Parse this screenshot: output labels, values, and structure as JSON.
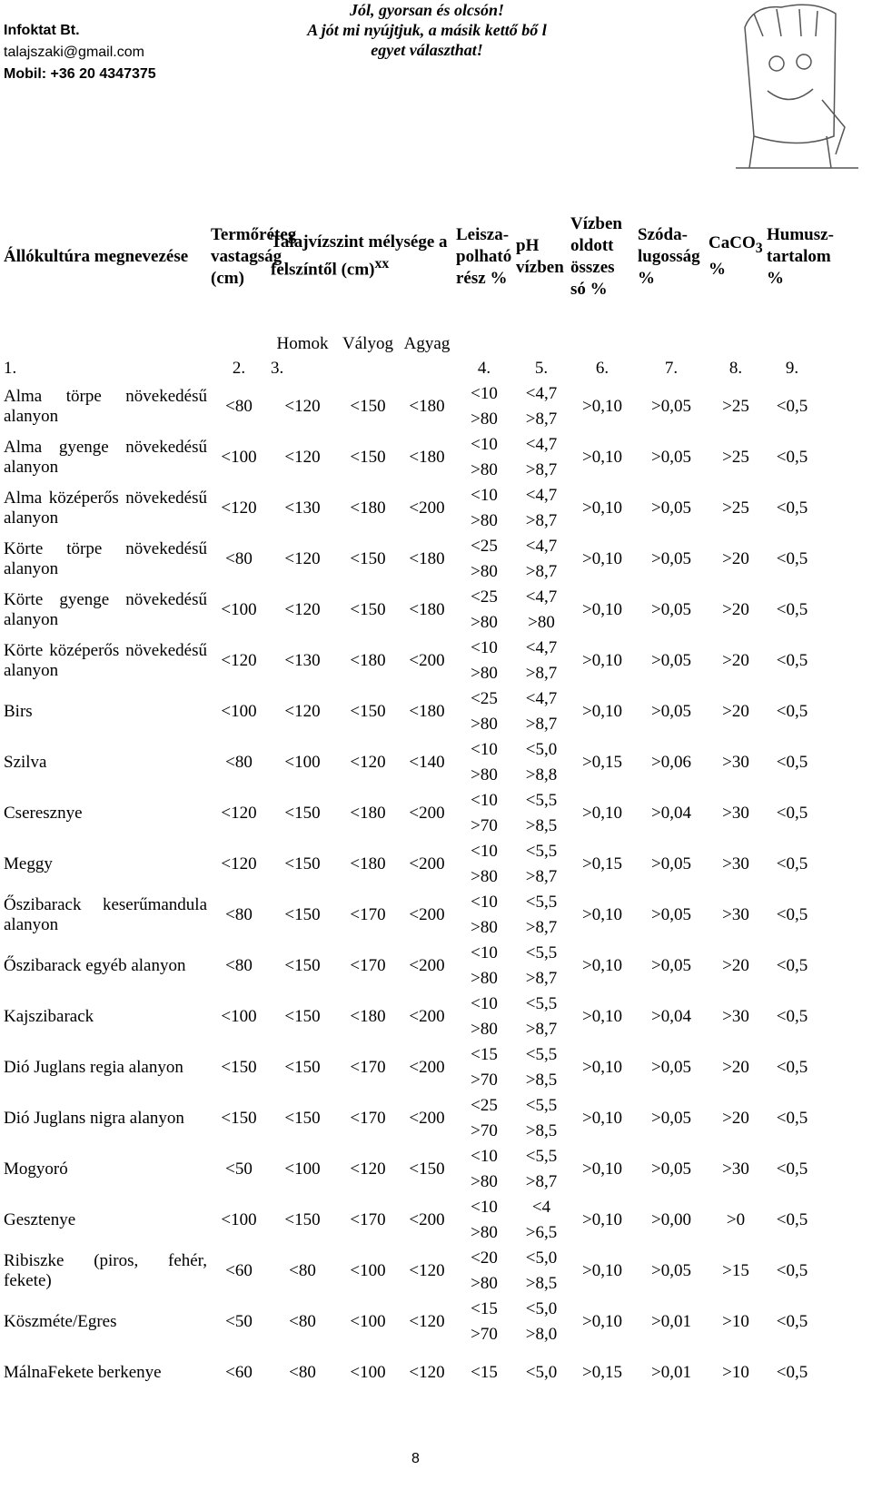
{
  "header": {
    "company": [
      "Infoktat Bt.",
      "talajszaki@gmail.com",
      "Mobil: +36 20 4347375"
    ],
    "slogan": [
      "Jól, gyorsan és olcsón!",
      "A jót mi nyújtjuk, a másik kettő bő l",
      "egyet választhat!"
    ]
  },
  "table": {
    "headers": [
      "Állókultúra megnevezése",
      "Termőréteg vastagság (cm)",
      {
        "text": "Talajvízszint mélysége a felszíntől (cm)",
        "sup": "xx"
      },
      "Leisza-polható rész %",
      "pH vízben",
      "Vízben oldott összes só %",
      "Szóda-lugosság %",
      {
        "text": "CaCO",
        "sub": "3",
        "tail": "%"
      },
      "Humusz-tartalom %"
    ],
    "subheaders": [
      "Homok",
      "Vályog",
      "Agyag"
    ],
    "numbers": [
      "1.",
      "2.",
      "3.",
      "4.",
      "5.",
      "6.",
      "7.",
      "8.",
      "9."
    ],
    "rows": [
      [
        "Alma törpe növekedésű alanyon",
        "<80",
        "<120",
        "<150",
        "<180",
        [
          "<10",
          ">80"
        ],
        [
          "<4,7",
          ">8,7"
        ],
        ">0,10",
        ">0,05",
        ">25",
        "<0,5"
      ],
      [
        "Alma gyenge növekedésű alanyon",
        "<100",
        "<120",
        "<150",
        "<180",
        [
          "<10",
          ">80"
        ],
        [
          "<4,7",
          ">8,7"
        ],
        ">0,10",
        ">0,05",
        ">25",
        "<0,5"
      ],
      [
        "Alma középerős növekedésű alanyon",
        "<120",
        "<130",
        "<180",
        "<200",
        [
          "<10",
          ">80"
        ],
        [
          "<4,7",
          ">8,7"
        ],
        ">0,10",
        ">0,05",
        ">25",
        "<0,5"
      ],
      [
        "Körte törpe növekedésű alanyon",
        "<80",
        "<120",
        "<150",
        "<180",
        [
          "<25",
          ">80"
        ],
        [
          "<4,7",
          ">8,7"
        ],
        ">0,10",
        ">0,05",
        ">20",
        "<0,5"
      ],
      [
        "Körte gyenge növekedésű alanyon",
        "<100",
        "<120",
        "<150",
        "<180",
        [
          "<25",
          ">80"
        ],
        [
          "<4,7",
          ">80"
        ],
        ">0,10",
        ">0,05",
        ">20",
        "<0,5"
      ],
      [
        "Körte középerős növekedésű alanyon",
        "<120",
        "<130",
        "<180",
        "<200",
        [
          "<10",
          ">80"
        ],
        [
          "<4,7",
          ">8,7"
        ],
        ">0,10",
        ">0,05",
        ">20",
        "<0,5"
      ],
      [
        "Birs",
        "<100",
        "<120",
        "<150",
        "<180",
        [
          "<25",
          ">80"
        ],
        [
          "<4,7",
          ">8,7"
        ],
        ">0,10",
        ">0,05",
        ">20",
        "<0,5"
      ],
      [
        "Szilva",
        "<80",
        "<100",
        "<120",
        "<140",
        [
          "<10",
          ">80"
        ],
        [
          "<5,0",
          ">8,8"
        ],
        ">0,15",
        ">0,06",
        ">30",
        "<0,5"
      ],
      [
        "Cseresznye",
        "<120",
        "<150",
        "<180",
        "<200",
        [
          "<10",
          ">70"
        ],
        [
          "<5,5",
          ">8,5"
        ],
        ">0,10",
        ">0,04",
        ">30",
        "<0,5"
      ],
      [
        "Meggy",
        "<120",
        "<150",
        "<180",
        "<200",
        [
          "<10",
          ">80"
        ],
        [
          "<5,5",
          ">8,7"
        ],
        ">0,15",
        ">0,05",
        ">30",
        "<0,5"
      ],
      [
        "Őszibarack keserűmandula alanyon",
        "<80",
        "<150",
        "<170",
        "<200",
        [
          "<10",
          ">80"
        ],
        [
          "<5,5",
          ">8,7"
        ],
        ">0,10",
        ">0,05",
        ">30",
        "<0,5"
      ],
      [
        "Őszibarack egyéb alanyon",
        "<80",
        "<150",
        "<170",
        "<200",
        [
          "<10",
          ">80"
        ],
        [
          "<5,5",
          ">8,7"
        ],
        ">0,10",
        ">0,05",
        ">20",
        "<0,5"
      ],
      [
        "Kajszibarack",
        "<100",
        "<150",
        "<180",
        "<200",
        [
          "<10",
          ">80"
        ],
        [
          "<5,5",
          ">8,7"
        ],
        ">0,10",
        ">0,04",
        ">30",
        "<0,5"
      ],
      [
        "Dió Juglans regia alanyon",
        "<150",
        "<150",
        "<170",
        "<200",
        [
          "<15",
          ">70"
        ],
        [
          "<5,5",
          ">8,5"
        ],
        ">0,10",
        ">0,05",
        ">20",
        "<0,5"
      ],
      [
        "Dió Juglans nigra alanyon",
        "<150",
        "<150",
        "<170",
        "<200",
        [
          "<25",
          ">70"
        ],
        [
          "<5,5",
          ">8,5"
        ],
        ">0,10",
        ">0,05",
        ">20",
        "<0,5"
      ],
      [
        "Mogyoró",
        "<50",
        "<100",
        "<120",
        "<150",
        [
          "<10",
          ">80"
        ],
        [
          "<5,5",
          ">8,7"
        ],
        ">0,10",
        ">0,05",
        ">30",
        "<0,5"
      ],
      [
        "Gesztenye",
        "<100",
        "<150",
        "<170",
        "<200",
        [
          "<10",
          ">80"
        ],
        [
          "<4",
          ">6,5"
        ],
        ">0,10",
        ">0,00",
        ">0",
        "<0,5"
      ],
      [
        "Ribiszke (piros, fehér, fekete)",
        "<60",
        "<80",
        "<100",
        "<120",
        [
          "<20",
          ">80"
        ],
        [
          "<5,0",
          ">8,5"
        ],
        ">0,10",
        ">0,05",
        ">15",
        "<0,5"
      ],
      [
        "Köszméte/Egres",
        "<50",
        "<80",
        "<100",
        "<120",
        [
          "<15",
          ">70"
        ],
        [
          "<5,0",
          ">8,0"
        ],
        ">0,10",
        ">0,01",
        ">10",
        "<0,5"
      ],
      [
        "MálnaFekete berkenye",
        "<60",
        "<80",
        "<100",
        "<120",
        [
          "<15"
        ],
        [
          "<5,0"
        ],
        ">0,15",
        ">0,01",
        ">10",
        "<0,5"
      ]
    ]
  },
  "footer": {
    "page": "8"
  }
}
